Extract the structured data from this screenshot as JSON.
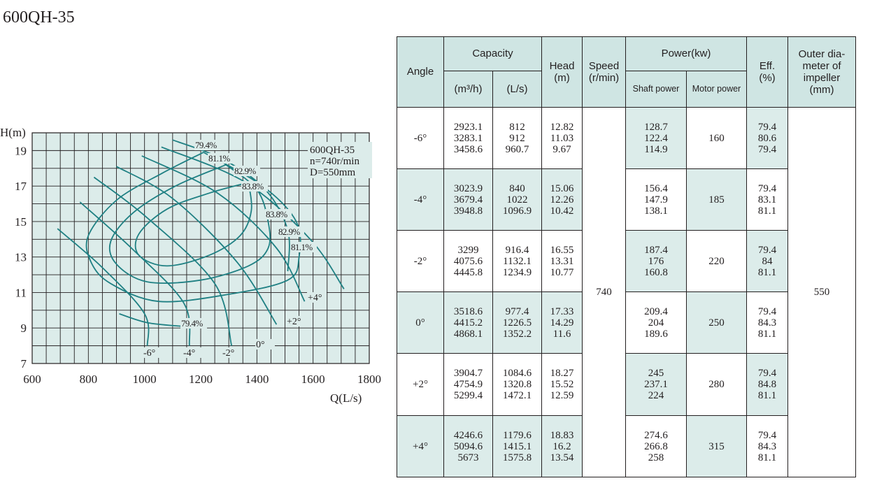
{
  "page": {
    "title": "600QH-35"
  },
  "chart_data": {
    "type": "line",
    "xlabel": "Q(L/s)",
    "ylabel": "H(m)",
    "xlim": [
      600,
      1800
    ],
    "ylim": [
      7,
      20
    ],
    "x_ticks": [
      600,
      800,
      1000,
      1200,
      1400,
      1600,
      1800
    ],
    "y_ticks": [
      7,
      9,
      11,
      13,
      15,
      17,
      19
    ],
    "grid": true,
    "info_box": [
      "600QH-35",
      "n=740r/min",
      "D=550mm"
    ],
    "series": [
      {
        "name": "-6°",
        "points": [
          [
            690,
            14.6
          ],
          [
            850,
            12.4
          ],
          [
            1000,
            9.8
          ],
          [
            1010,
            8.0
          ]
        ]
      },
      {
        "name": "-4°",
        "points": [
          [
            770,
            16.1
          ],
          [
            960,
            13.4
          ],
          [
            1140,
            10.4
          ],
          [
            1160,
            8.0
          ]
        ]
      },
      {
        "name": "-2°",
        "points": [
          [
            820,
            17.5
          ],
          [
            1010,
            15.2
          ],
          [
            1250,
            11.5
          ],
          [
            1310,
            8.0
          ]
        ]
      },
      {
        "name": "0°",
        "points": [
          [
            900,
            18.1
          ],
          [
            1100,
            16.3
          ],
          [
            1330,
            12.7
          ],
          [
            1470,
            9.2
          ]
        ]
      },
      {
        "name": "+2°",
        "points": [
          [
            990,
            18.7
          ],
          [
            1260,
            16.6
          ],
          [
            1470,
            13.5
          ],
          [
            1570,
            10.5
          ]
        ]
      },
      {
        "name": "+4°",
        "points": [
          [
            1060,
            19.2
          ],
          [
            1360,
            17.2
          ],
          [
            1590,
            14.0
          ],
          [
            1710,
            11.2
          ]
        ]
      }
    ],
    "efficiency_contours": [
      {
        "label": "79.4%",
        "points": [
          [
            1100,
            19.6
          ],
          [
            1280,
            18.5
          ],
          [
            1430,
            16.8
          ],
          [
            1510,
            14.5
          ],
          [
            1510,
            12.2
          ]
        ]
      },
      {
        "label": "81.1%",
        "points": [
          [
            1210,
            18.9
          ],
          [
            1420,
            17.0
          ],
          [
            1540,
            15.0
          ],
          [
            1550,
            13.0
          ],
          [
            1510,
            11.7
          ],
          [
            1300,
            10.9
          ],
          [
            1050,
            10.5
          ],
          [
            880,
            11.5
          ],
          [
            810,
            12.7
          ],
          [
            800,
            14.2
          ],
          [
            900,
            16.2
          ],
          [
            1060,
            17.7
          ],
          [
            1210,
            18.9
          ]
        ]
      },
      {
        "label": "82.9%",
        "points": [
          [
            1290,
            18.2
          ],
          [
            1400,
            16.8
          ],
          [
            1440,
            15.0
          ],
          [
            1440,
            13.5
          ],
          [
            1370,
            12.5
          ],
          [
            1200,
            11.7
          ],
          [
            1010,
            11.6
          ],
          [
            900,
            12.6
          ],
          [
            880,
            13.9
          ],
          [
            960,
            15.5
          ],
          [
            1110,
            17.0
          ],
          [
            1290,
            18.2
          ]
        ]
      },
      {
        "label": "83.8%",
        "points": [
          [
            1370,
            17.2
          ],
          [
            1380,
            15.6
          ],
          [
            1340,
            14.2
          ],
          [
            1230,
            13.1
          ],
          [
            1080,
            12.5
          ],
          [
            980,
            13.1
          ],
          [
            980,
            14.3
          ],
          [
            1080,
            15.7
          ],
          [
            1230,
            16.6
          ],
          [
            1370,
            17.2
          ]
        ]
      },
      {
        "label": "79.4%",
        "points": [
          [
            910,
            9.8
          ],
          [
            1010,
            9.3
          ],
          [
            1130,
            9.1
          ]
        ]
      }
    ],
    "contour_labels": [
      "79.4%",
      "81.1%",
      "82.9%",
      "83.8%",
      "83.8%",
      "82.9%",
      "81.1%",
      "79.4%"
    ],
    "curve_labels": [
      "-6°",
      "-4°",
      "-2°",
      "0°",
      "+2°",
      "+4°"
    ]
  },
  "table": {
    "headers": {
      "angle": "Angle",
      "capacity": "Capacity",
      "capacity_m3h": "(m³/h)",
      "capacity_ls": "(L/s)",
      "head": "Head\n(m)",
      "speed": "Speed\n(r/min)",
      "power": "Power(kw)",
      "shaft_power": "Shaft power",
      "motor_power": "Motor power",
      "eff": "Eff.\n(%)",
      "outer_dia": "Outer dia-\nmeter of\nimpeller\n(mm)"
    },
    "speed": "740",
    "outer_diameter": "550",
    "rows": [
      {
        "angle": "-6°",
        "m3h": "2923.1\n3283.1\n3458.6",
        "ls": "812\n912\n960.7",
        "head": "12.82\n11.03\n9.67",
        "shaft": "128.7\n122.4\n114.9",
        "motor": "160",
        "eff": "79.4\n80.6\n79.4"
      },
      {
        "angle": "-4°",
        "m3h": "3023.9\n3679.4\n3948.8",
        "ls": "840\n1022\n1096.9",
        "head": "15.06\n12.26\n10.42",
        "shaft": "156.4\n147.9\n138.1",
        "motor": "185",
        "eff": "79.4\n83.1\n81.1"
      },
      {
        "angle": "-2°",
        "m3h": "3299\n4075.6\n4445.8",
        "ls": "916.4\n1132.1\n1234.9",
        "head": "16.55\n13.31\n10.77",
        "shaft": "187.4\n176\n160.8",
        "motor": "220",
        "eff": "79.4\n84\n81.1"
      },
      {
        "angle": "0°",
        "m3h": "3518.6\n4415.2\n4868.1",
        "ls": "977.4\n1226.5\n1352.2",
        "head": "17.33\n14.29\n11.6",
        "shaft": "209.4\n204\n189.6",
        "motor": "250",
        "eff": "79.4\n84.3\n81.1"
      },
      {
        "angle": "+2°",
        "m3h": "3904.7\n4754.9\n5299.4",
        "ls": "1084.6\n1320.8\n1472.1",
        "head": "18.27\n15.52\n12.59",
        "shaft": "245\n237.1\n224",
        "motor": "280",
        "eff": "79.4\n84.8\n81.1"
      },
      {
        "angle": "+4°",
        "m3h": "4246.6\n5094.6\n5673",
        "ls": "1179.6\n1415.1\n1575.8",
        "head": "18.83\n16.2\n13.54",
        "shaft": "274.6\n266.8\n258",
        "motor": "315",
        "eff": "79.4\n84.3\n81.1"
      }
    ]
  },
  "colors": {
    "plot_bg": "#dcecea",
    "curve": "#1f8083",
    "grid": "#231f20",
    "header_bg": "#cfe5e3",
    "cell_shade": "#dcecea"
  }
}
